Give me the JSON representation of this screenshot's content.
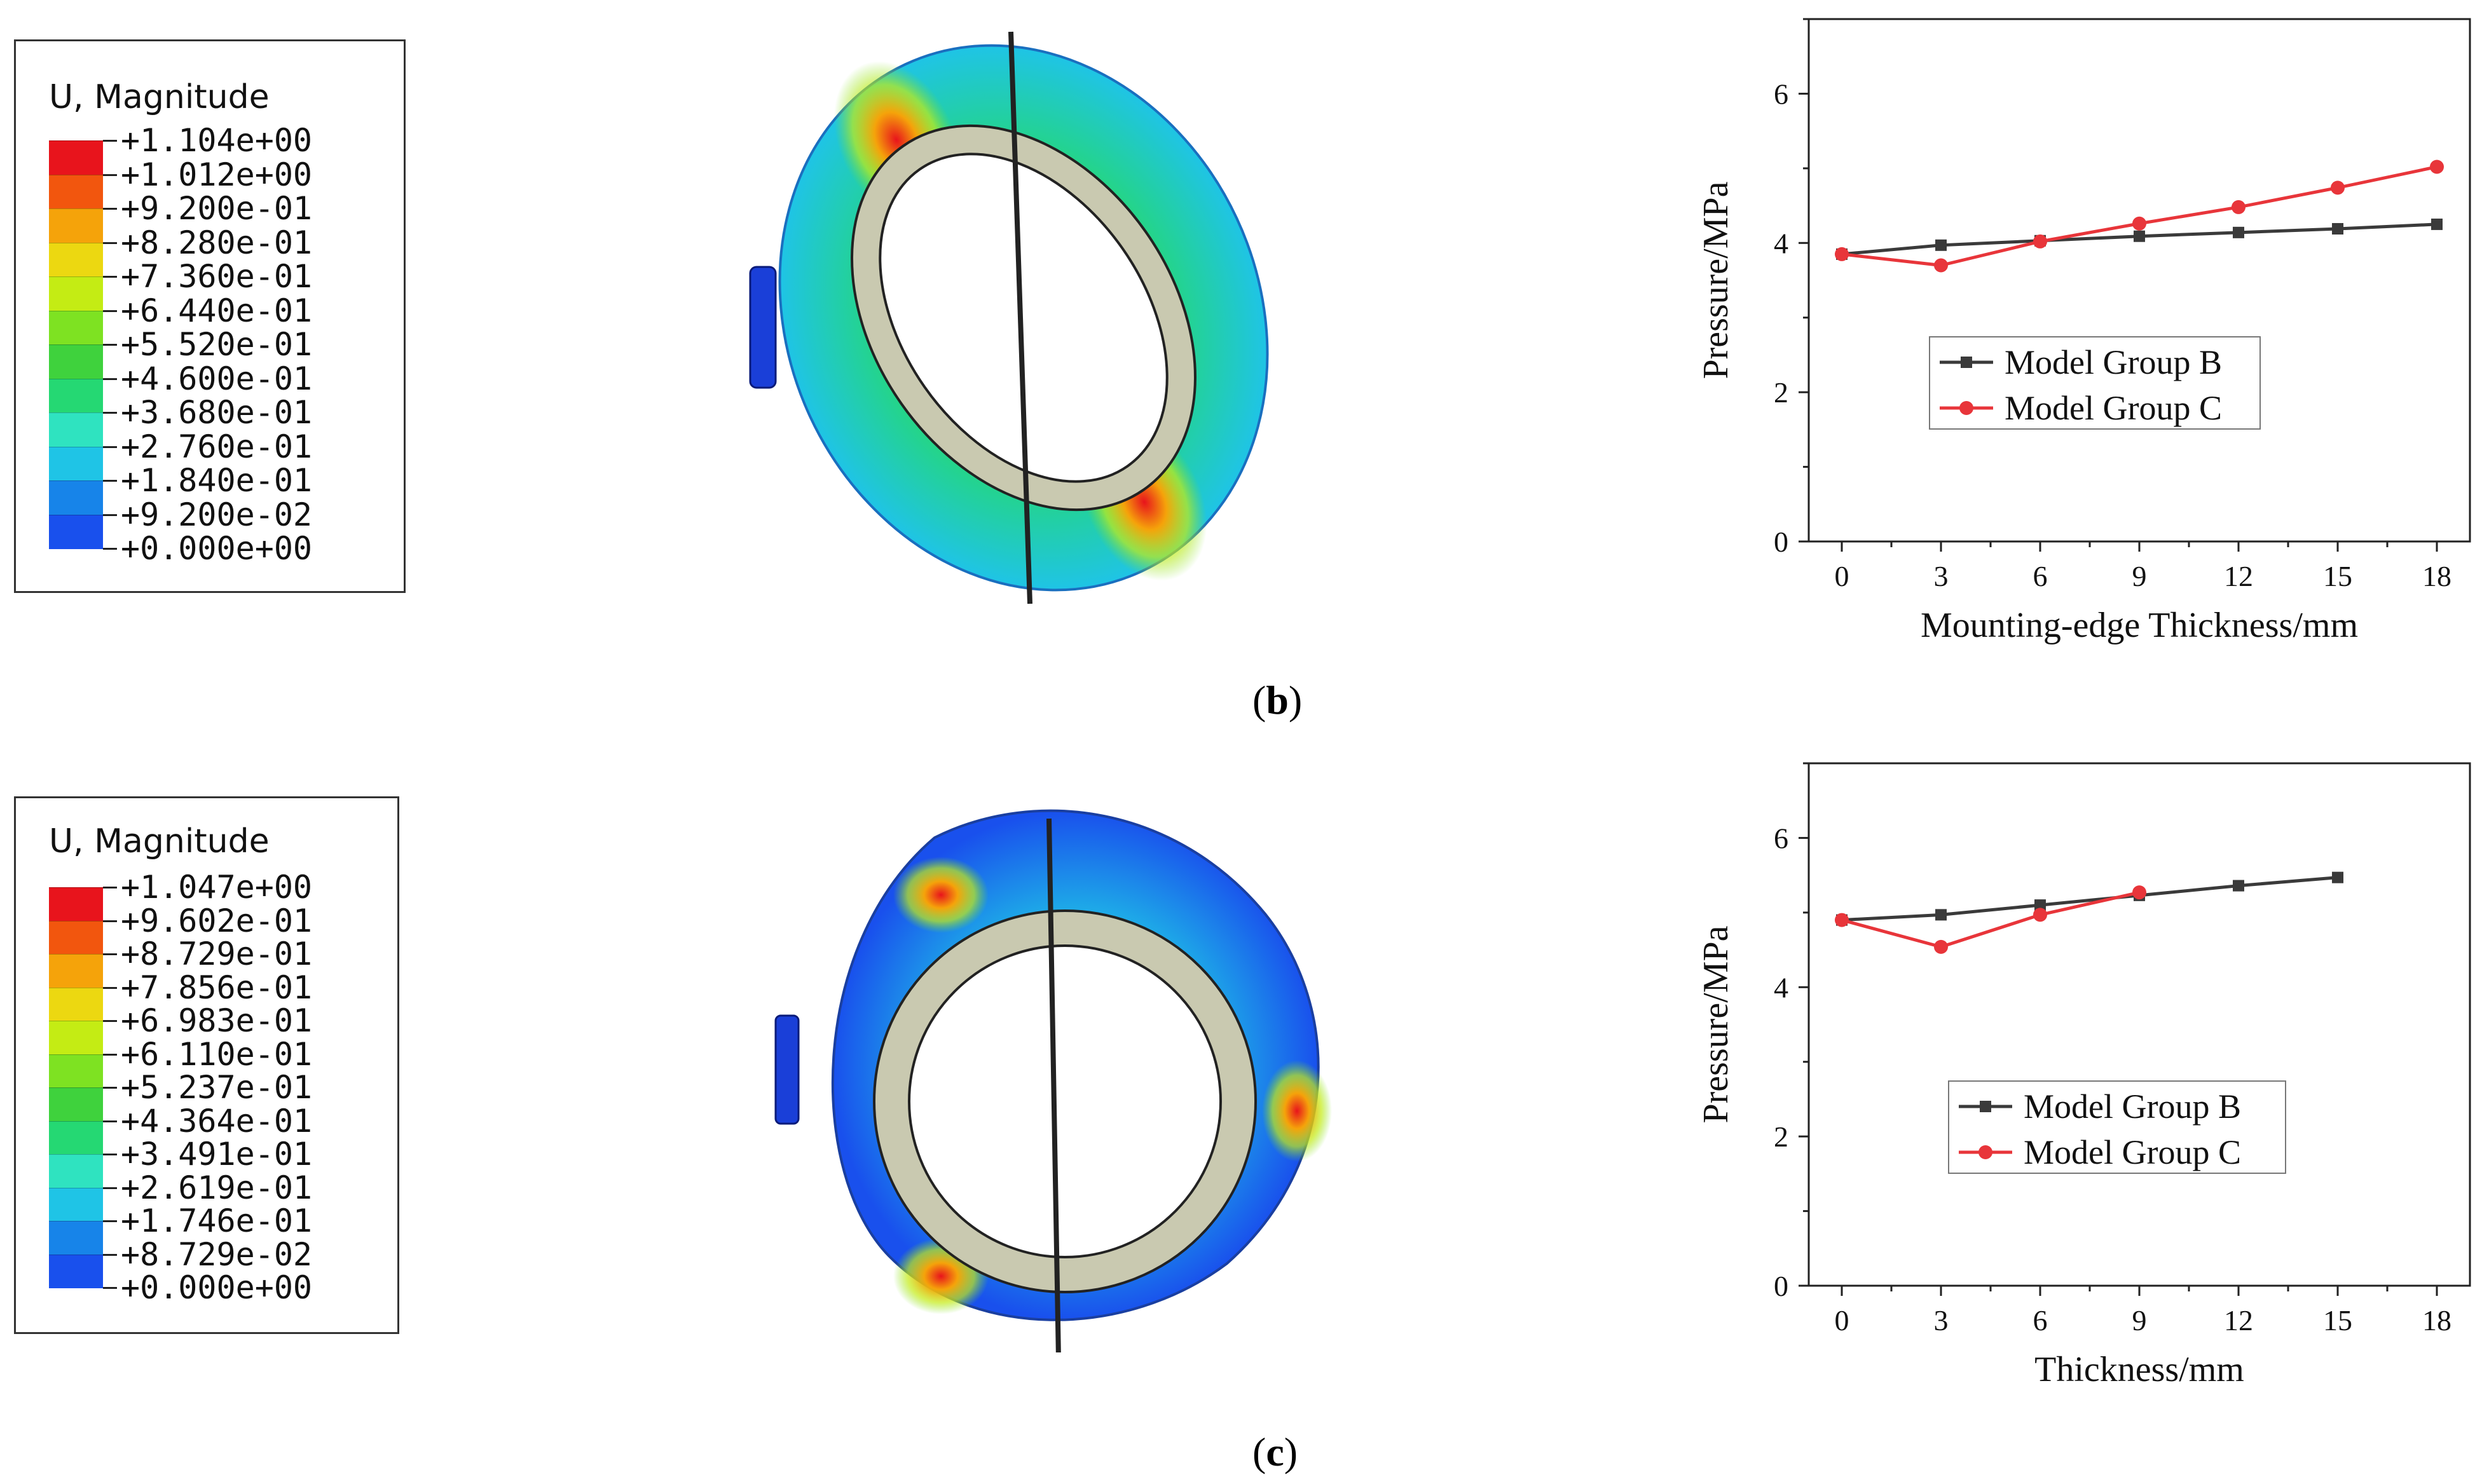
{
  "panels": [
    {
      "id": "b",
      "caption_letter": "b",
      "contour": {
        "title": "U, Magnitude",
        "values": [
          "+1.104e+00",
          "+1.012e+00",
          "+9.200e-01",
          "+8.280e-01",
          "+7.360e-01",
          "+6.440e-01",
          "+5.520e-01",
          "+4.600e-01",
          "+3.680e-01",
          "+2.760e-01",
          "+1.840e-01",
          "+9.200e-02",
          "+0.000e+00"
        ],
        "colors": [
          "#e8141c",
          "#f2560e",
          "#f5a30a",
          "#ecd811",
          "#c4ec14",
          "#7ee222",
          "#3fd23d",
          "#25d873",
          "#2fe3c0",
          "#1fc4e6",
          "#1784e9",
          "#1950ed",
          "#1222dc"
        ]
      }
    },
    {
      "id": "c",
      "caption_letter": "c",
      "contour": {
        "title": "U, Magnitude",
        "values": [
          "+1.047e+00",
          "+9.602e-01",
          "+8.729e-01",
          "+7.856e-01",
          "+6.983e-01",
          "+6.110e-01",
          "+5.237e-01",
          "+4.364e-01",
          "+3.491e-01",
          "+2.619e-01",
          "+1.746e-01",
          "+8.729e-02",
          "+0.000e+00"
        ],
        "colors": [
          "#e8141c",
          "#f2560e",
          "#f5a30a",
          "#ecd811",
          "#c4ec14",
          "#7ee222",
          "#3fd23d",
          "#25d873",
          "#2fe3c0",
          "#1fc4e6",
          "#1784e9",
          "#1950ed",
          "#1222dc"
        ]
      }
    }
  ],
  "chart_data": [
    {
      "type": "line",
      "xlabel": "Mounting-edge Thickness/mm",
      "ylabel": "Pressure/MPa",
      "x": [
        0,
        3,
        6,
        9,
        12,
        15,
        18
      ],
      "xticks": [
        0,
        3,
        6,
        9,
        12,
        15,
        18
      ],
      "yticks": [
        0,
        2,
        4,
        6
      ],
      "xlim": [
        -1,
        19
      ],
      "ylim": [
        0,
        7
      ],
      "legend_position": "center-right",
      "series": [
        {
          "name": "Model Group B",
          "color": "#3a3a3a",
          "marker": "square",
          "x": [
            0,
            3,
            6,
            9,
            12,
            15,
            18
          ],
          "values": [
            3.85,
            3.97,
            4.03,
            4.09,
            4.14,
            4.19,
            4.25
          ]
        },
        {
          "name": "Model Group C",
          "color": "#e8353a",
          "marker": "circle",
          "x": [
            0,
            3,
            6,
            9,
            12,
            15,
            18
          ],
          "values": [
            3.85,
            3.7,
            4.02,
            4.26,
            4.48,
            4.74,
            5.02
          ]
        }
      ]
    },
    {
      "type": "line",
      "xlabel": "Thickness/mm",
      "ylabel": "Pressure/MPa",
      "x": [
        0,
        3,
        6,
        9,
        12,
        15
      ],
      "xticks": [
        0,
        3,
        6,
        9,
        12,
        15,
        18
      ],
      "yticks": [
        0,
        2,
        4,
        6
      ],
      "xlim": [
        -1,
        19
      ],
      "ylim": [
        0,
        7
      ],
      "legend_position": "center-right",
      "series": [
        {
          "name": "Model Group B",
          "color": "#3a3a3a",
          "marker": "square",
          "x": [
            0,
            3,
            6,
            9,
            12,
            15
          ],
          "values": [
            4.9,
            4.97,
            5.1,
            5.23,
            5.36,
            5.47
          ]
        },
        {
          "name": "Model Group C",
          "color": "#e8353a",
          "marker": "circle",
          "x": [
            0,
            3,
            6,
            9
          ],
          "values": [
            4.9,
            4.54,
            4.97,
            5.27
          ]
        }
      ]
    }
  ]
}
